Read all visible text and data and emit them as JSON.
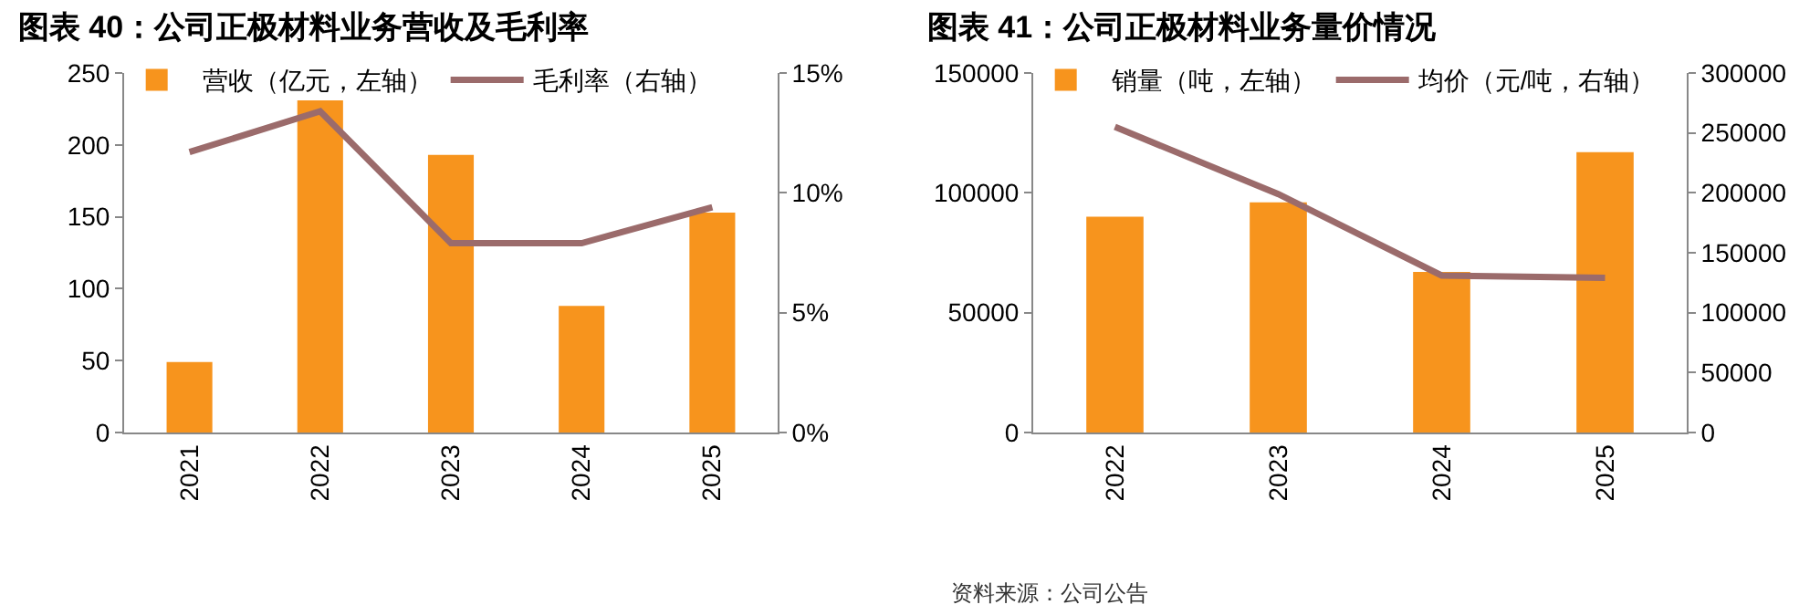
{
  "chart_data": [
    {
      "type": "bar",
      "title": "图表 40：公司正极材料业务营收及毛利率",
      "categories": [
        "2021",
        "2022",
        "2023",
        "2024",
        "2025"
      ],
      "series": [
        {
          "name": "营收（亿元，左轴）",
          "color": "#f7941d",
          "values": [
            49,
            231,
            193,
            88,
            153
          ]
        },
        {
          "name": "毛利率（右轴）",
          "type": "line",
          "axis": "y2",
          "color": "#9b6b6b",
          "values": [
            11.7,
            13.4,
            7.9,
            7.9,
            9.4
          ]
        }
      ],
      "ylim": [
        0,
        250
      ],
      "yticks": [
        0,
        50,
        100,
        150,
        200,
        250
      ],
      "y2lim": [
        0,
        15
      ],
      "y2ticks": [
        {
          "value": 0,
          "label": "0%"
        },
        {
          "value": 5,
          "label": "5%"
        },
        {
          "value": 10,
          "label": "10%"
        },
        {
          "value": 15,
          "label": "15%"
        }
      ],
      "grid": false,
      "legend": "top",
      "marker": "none",
      "line_style": "solid"
    },
    {
      "type": "bar",
      "title": "图表 41：公司正极材料业务量价情况",
      "categories": [
        "2022",
        "2023",
        "2024",
        "2025"
      ],
      "series": [
        {
          "name": "销量（吨，左轴）",
          "color": "#f7941d",
          "values": [
            90000,
            96000,
            67000,
            117000
          ]
        },
        {
          "name": "均价（元/吨，右轴）",
          "type": "line",
          "axis": "y2",
          "color": "#9b6b6b",
          "values": [
            255000,
            199000,
            131000,
            129000
          ]
        }
      ],
      "ylim": [
        0,
        150000
      ],
      "yticks": [
        0,
        50000,
        100000,
        150000
      ],
      "y2lim": [
        0,
        300000
      ],
      "y2ticks": [
        0,
        50000,
        100000,
        150000,
        200000,
        250000,
        300000
      ],
      "grid": false,
      "legend": "top",
      "marker": "none",
      "line_style": "solid",
      "annotations": [
        "资料来源：公司公告"
      ]
    }
  ]
}
